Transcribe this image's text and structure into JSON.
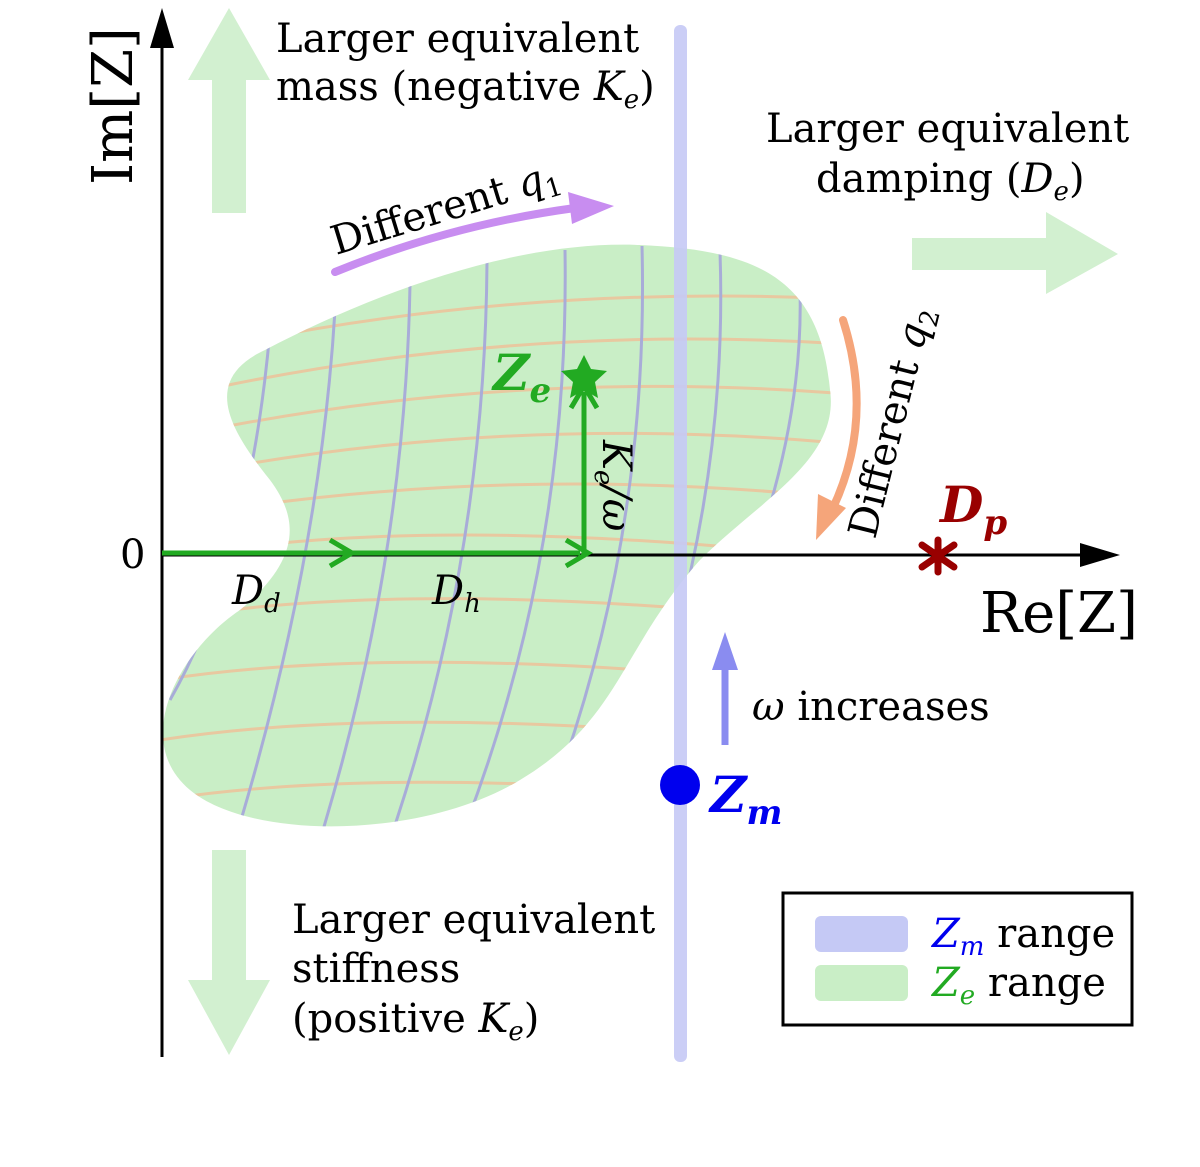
{
  "axes": {
    "y_label": "Im[Z]",
    "x_label": "Re[Z]",
    "origin": "0"
  },
  "annotations": {
    "mass_line1": "Larger equivalent",
    "mass_line2_prefix": "mass (negative ",
    "mass_var": "K",
    "mass_sub": "e",
    "mass_suffix": ")",
    "damp_line1": "Larger equivalent",
    "damp_line2_prefix": "damping (",
    "damp_var": "D",
    "damp_sub": "e",
    "damp_suffix": ")",
    "stiff_line1": "Larger equivalent",
    "stiff_line2": "stiffness",
    "stiff_line3_prefix": "(positive ",
    "stiff_var": "K",
    "stiff_sub": "e",
    "stiff_suffix": ")",
    "q1_text": "Different ",
    "q1_var": "q",
    "q1_sub": "1",
    "q2_text": "Different ",
    "q2_var": "q",
    "q2_sub": "2",
    "omega": "ω",
    "omega_text": " increases"
  },
  "points": {
    "ze_var": "Z",
    "ze_sub": "e",
    "zm_var": "Z",
    "zm_sub": "m",
    "dp_var": "D",
    "dp_sub": "p"
  },
  "vectors": {
    "dd_var": "D",
    "dd_sub": "d",
    "dh_var": "D",
    "dh_sub": "h",
    "ke_var": "K",
    "ke_sub": "e",
    "ke_suffix": "/ω"
  },
  "legend": {
    "zm_var": "Z",
    "zm_sub": "m",
    "zm_text": " range",
    "ze_var": "Z",
    "ze_sub": "e",
    "ze_text": " range"
  },
  "colors": {
    "green_region": "#c9eec6",
    "green_arrow": "#22aa22",
    "zm_range": "#c5c9f5",
    "zm_blue": "#0000ee",
    "dp_red": "#990000",
    "q1_purple": "#c88df0",
    "q2_orange": "#f5a57a",
    "omega_arrow": "#8a8cf0",
    "mesh_blue": "#a8acd8",
    "mesh_orange": "#e8c8a0"
  }
}
